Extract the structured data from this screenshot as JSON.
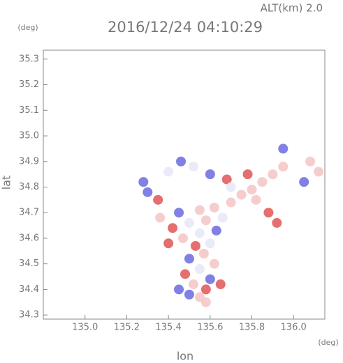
{
  "header": {
    "altitude": "ALT(km) 2.0",
    "unit_top": "(deg)",
    "unit_bottom": "(deg)"
  },
  "chart_data": {
    "type": "scatter",
    "title": "2016/12/24 04:10:29",
    "x_label": "lon",
    "y_label": "lat",
    "xlim": [
      134.8,
      136.15
    ],
    "ylim": [
      34.284,
      35.335
    ],
    "xticks": [
      {
        "value": 135.0,
        "label": "135.0"
      },
      135.2,
      135.4,
      135.6,
      135.8,
      {
        "value": 136.0,
        "label": "136.0"
      }
    ],
    "yticks": [
      34.3,
      34.4,
      34.5,
      34.6,
      34.7,
      34.8,
      34.9,
      {
        "value": 35.0,
        "label": "35.0"
      },
      35.1,
      35.2,
      35.3
    ],
    "x": [
      135.5,
      135.55,
      135.58,
      135.52,
      135.6,
      135.48,
      135.55,
      135.62,
      135.5,
      135.57,
      135.53,
      135.6,
      135.47,
      135.55,
      135.63,
      135.42,
      135.5,
      135.58,
      135.66,
      135.45,
      135.55,
      135.62,
      135.7,
      135.75,
      135.8,
      135.85,
      135.9,
      135.95,
      135.78,
      135.68,
      135.6,
      135.52,
      135.46,
      135.4,
      135.35,
      135.28,
      135.3,
      135.88,
      135.92,
      135.95,
      136.08,
      136.12,
      136.05,
      135.7,
      135.82,
      135.36,
      135.4,
      135.45,
      135.65,
      135.58
    ],
    "y": [
      34.38,
      34.37,
      34.4,
      34.42,
      34.44,
      34.46,
      34.48,
      34.5,
      34.52,
      34.54,
      34.57,
      34.58,
      34.6,
      34.62,
      34.63,
      34.64,
      34.66,
      34.67,
      34.68,
      34.7,
      34.71,
      34.72,
      34.74,
      34.77,
      34.79,
      34.82,
      34.85,
      34.88,
      34.85,
      34.83,
      34.85,
      34.88,
      34.9,
      34.86,
      34.75,
      34.82,
      34.78,
      34.7,
      34.66,
      34.95,
      34.9,
      34.86,
      34.82,
      34.8,
      34.75,
      34.68,
      34.58,
      34.4,
      34.42,
      34.35
    ],
    "colors": [
      "#6a6ae0",
      "#f4c4c4",
      "#e05555",
      "#f4c4c4",
      "#6a6ae0",
      "#e05555",
      "#e6e6f8",
      "#f4c4c4",
      "#6a6ae0",
      "#f4c4c4",
      "#e05555",
      "#e6e6f8",
      "#f4c4c4",
      "#e6e6f8",
      "#6a6ae0",
      "#e05555",
      "#e6e6f8",
      "#f4c4c4",
      "#e6e6f8",
      "#6a6ae0",
      "#f4c4c4",
      "#f4c4c4",
      "#f4c4c4",
      "#f4c4c4",
      "#f4c4c4",
      "#f4c4c4",
      "#f4c4c4",
      "#f4c4c4",
      "#e05555",
      "#e05555",
      "#6a6ae0",
      "#e6e6f8",
      "#6a6ae0",
      "#e6e6f8",
      "#e05555",
      "#6a6ae0",
      "#6a6ae0",
      "#e05555",
      "#e05555",
      "#6a6ae0",
      "#f4c4c4",
      "#f4c4c4",
      "#6a6ae0",
      "#e6e6f8",
      "#f4c4c4",
      "#f4c4c4",
      "#e05555",
      "#6a6ae0",
      "#e05555",
      "#f4c4c4"
    ]
  }
}
